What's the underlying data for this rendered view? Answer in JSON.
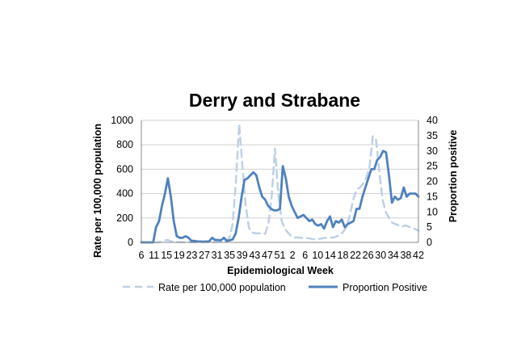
{
  "chart_data": {
    "type": "line",
    "title": "Derry and Strabane",
    "xlabel": "Epidemiological Week",
    "ylabel": "Rate per 100,000 population",
    "y2label": "Proportion positive",
    "ylim": [
      0,
      1000
    ],
    "y2lim": [
      0,
      40
    ],
    "yticks": [
      "0",
      "200",
      "400",
      "600",
      "800",
      "1000"
    ],
    "y2ticks": [
      "0",
      "5",
      "10",
      "15",
      "20",
      "25",
      "30",
      "35",
      "40"
    ],
    "xticks": [
      "6",
      "11",
      "15",
      "19",
      "23",
      "27",
      "31",
      "35",
      "39",
      "43",
      "47",
      "51",
      "2",
      "6",
      "10",
      "14",
      "18",
      "22",
      "26",
      "30",
      "34",
      "38",
      "42"
    ],
    "grid": true,
    "legend_position": "bottom",
    "series": [
      {
        "name": "Rate per 100,000 population",
        "axis": "left",
        "color": "#bdd1e6",
        "style": "dashed",
        "values": [
          0,
          0,
          0,
          0,
          0,
          0,
          5,
          15,
          20,
          10,
          5,
          3,
          2,
          2,
          1,
          1,
          1,
          0,
          0,
          1,
          2,
          2,
          2,
          3,
          3,
          5,
          10,
          40,
          150,
          500,
          970,
          620,
          300,
          120,
          80,
          75,
          75,
          70,
          70,
          160,
          380,
          770,
          400,
          180,
          110,
          80,
          50,
          40,
          40,
          38,
          35,
          35,
          30,
          25,
          30,
          30,
          35,
          40,
          40,
          40,
          50,
          60,
          90,
          130,
          230,
          350,
          430,
          450,
          480,
          530,
          620,
          870,
          840,
          580,
          350,
          250,
          200,
          160,
          150,
          140,
          130,
          140,
          130,
          120,
          110,
          95
        ]
      },
      {
        "name": "Proportion Positive",
        "axis": "right",
        "color": "#4f81bd",
        "style": "solid",
        "values": [
          0,
          0,
          0,
          0,
          0,
          5,
          7,
          12,
          16,
          21,
          15,
          7,
          2,
          1.5,
          1.5,
          2,
          1.5,
          0.5,
          0.5,
          0.3,
          0.3,
          0.2,
          0.3,
          0.3,
          1.5,
          0.8,
          0.8,
          0.7,
          1.5,
          0.5,
          0.7,
          1,
          3,
          8,
          15,
          20.5,
          21,
          22,
          23,
          22,
          18,
          15,
          14,
          12,
          11,
          10.5,
          10.5,
          11,
          25,
          21,
          15,
          12,
          10,
          8,
          8.5,
          9,
          8,
          7,
          7.5,
          6,
          5.5,
          6,
          4.5,
          7,
          8.5,
          5,
          7,
          6.5,
          7.5,
          5,
          6,
          6.5,
          7,
          11,
          11,
          15,
          18,
          21,
          24,
          24,
          27,
          28,
          30,
          29.5,
          22,
          13,
          15,
          14,
          14.5,
          18,
          15,
          16,
          16,
          16,
          15
        ]
      }
    ]
  }
}
